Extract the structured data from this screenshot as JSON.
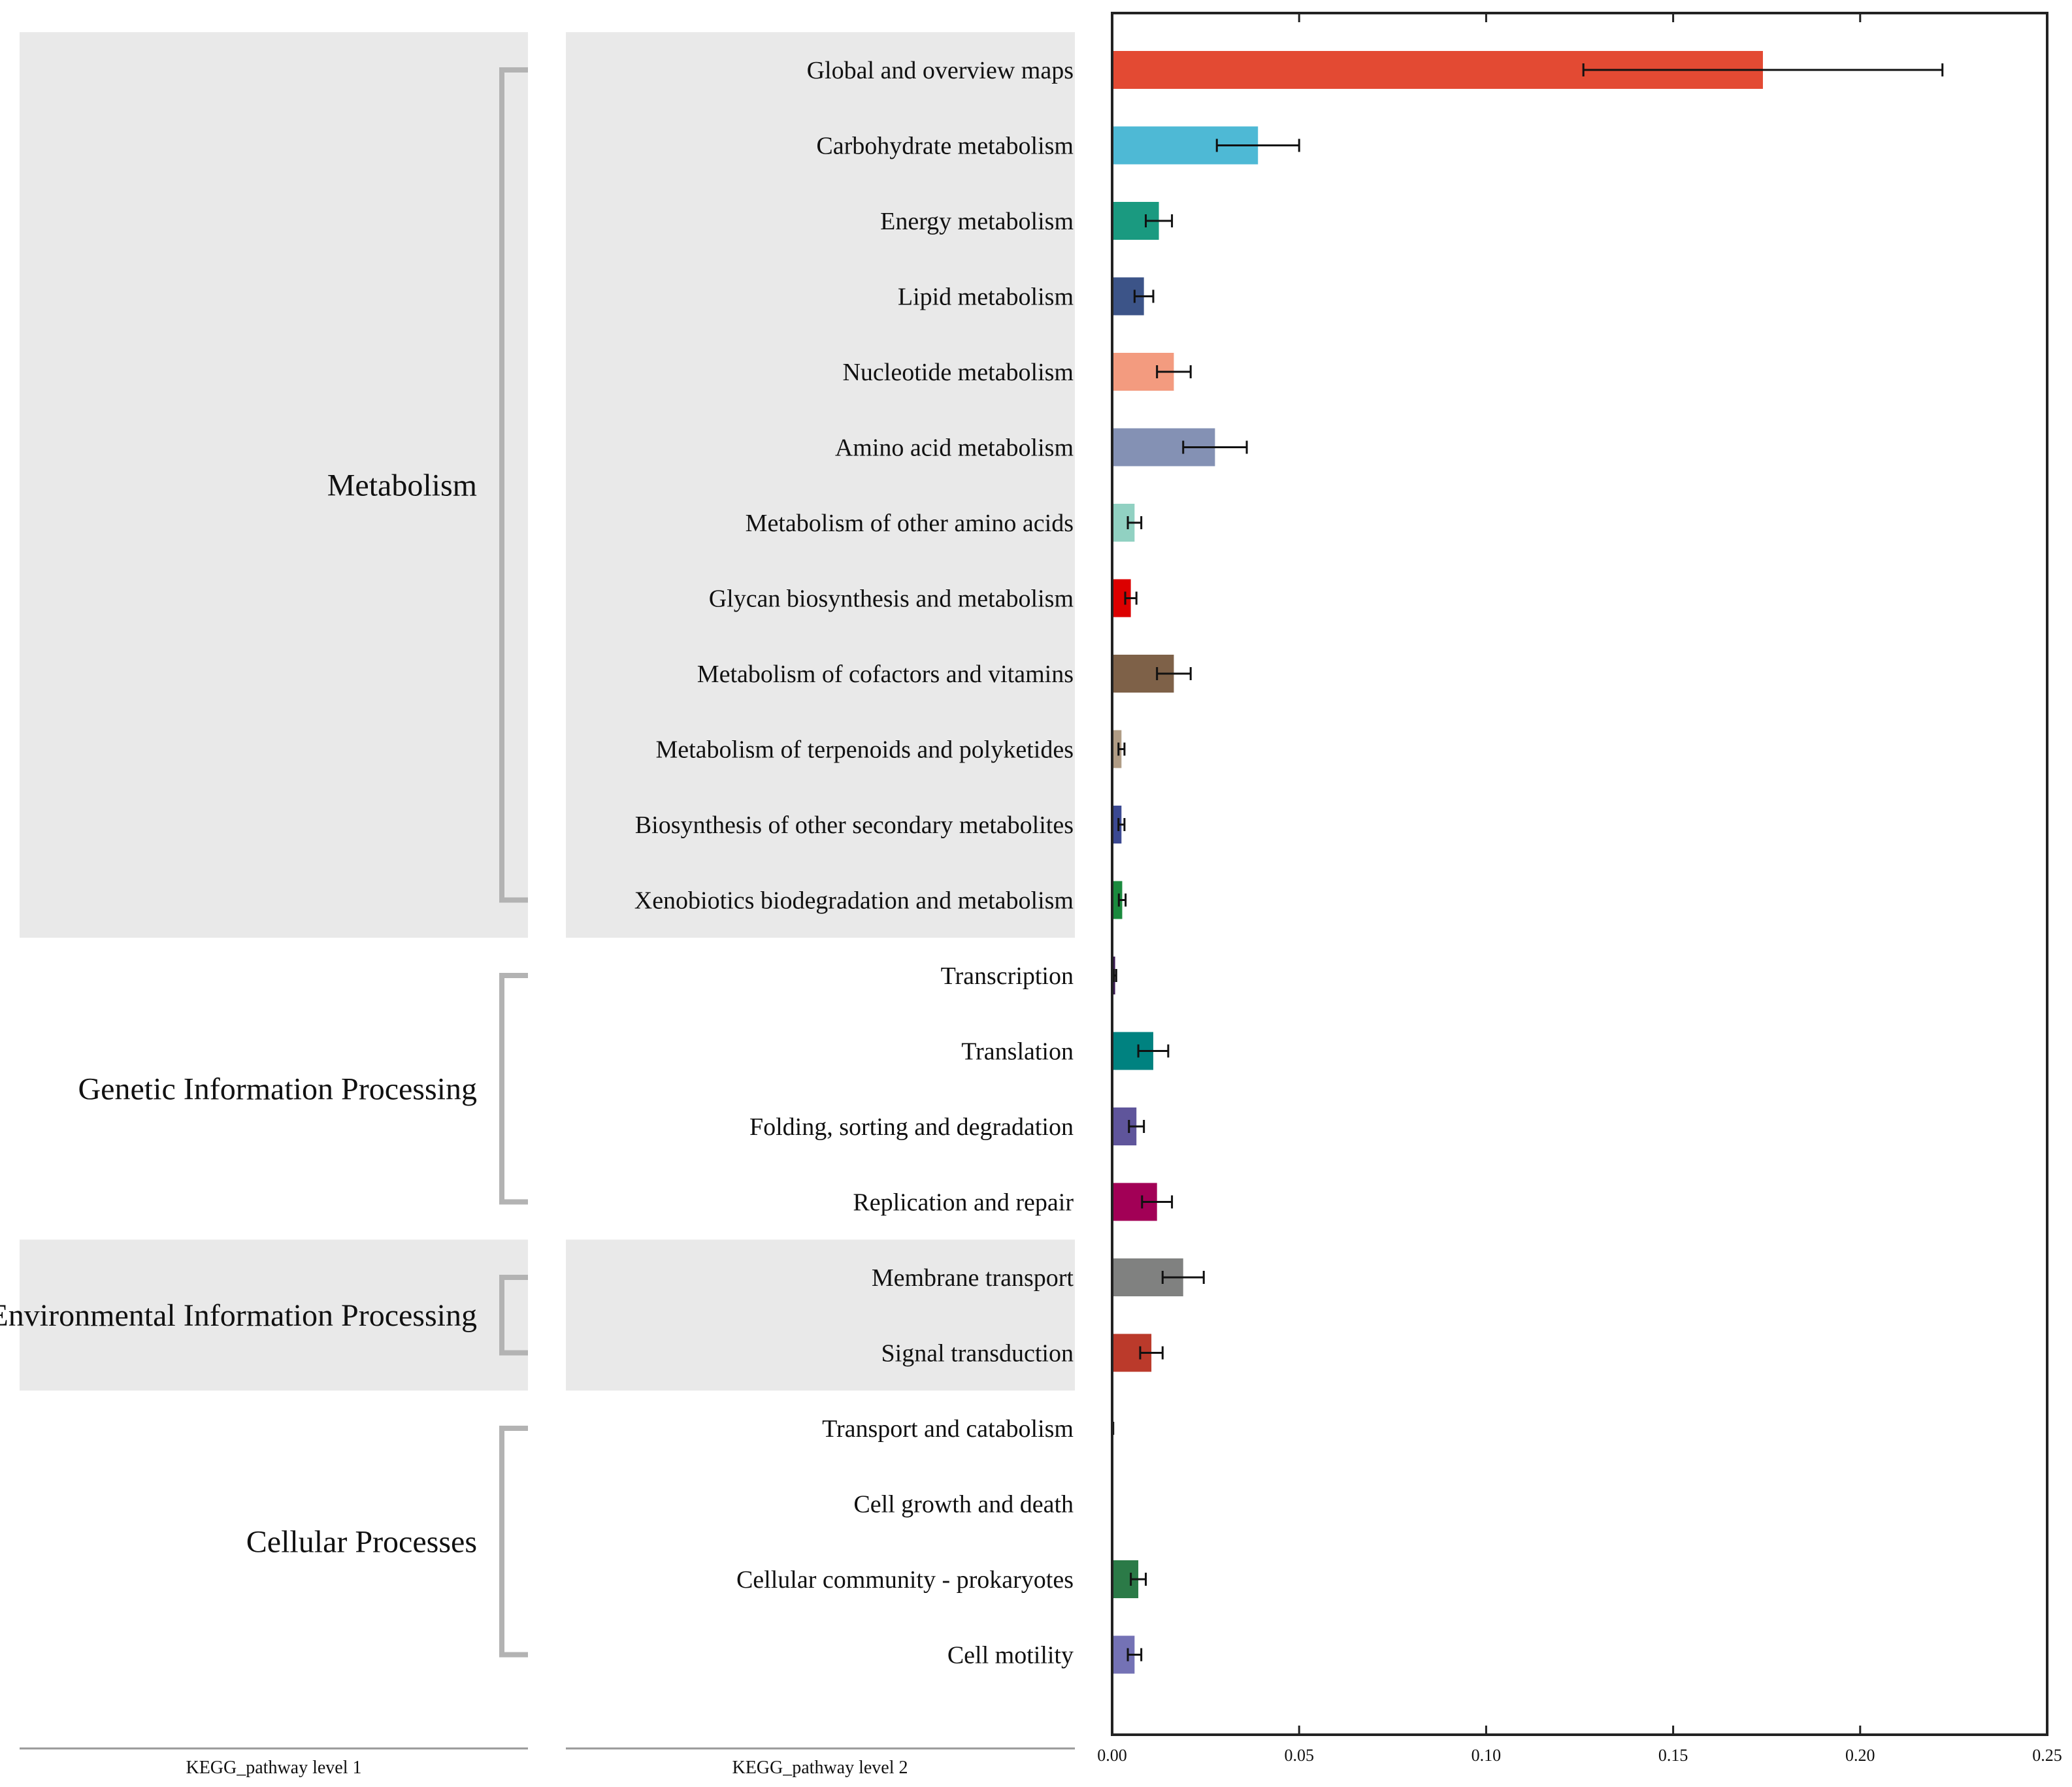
{
  "chart_data": {
    "type": "bar",
    "orientation": "horizontal",
    "xlabel": "",
    "xlim": [
      0,
      0.25
    ],
    "xticks": [
      0.0,
      0.05,
      0.1,
      0.15,
      0.2,
      0.25
    ],
    "xtick_labels": [
      "0.00",
      "0.05",
      "0.10",
      "0.15",
      "0.20",
      "0.25"
    ],
    "level1_title": "KEGG_pathway level 1",
    "level2_title": "KEGG_pathway level 2",
    "groups": [
      {
        "name": "Metabolism",
        "start": 0,
        "end": 11,
        "shaded": true
      },
      {
        "name": "Genetic Information Processing",
        "start": 12,
        "end": 15,
        "shaded": false
      },
      {
        "name": "Environmental Information Processing",
        "start": 16,
        "end": 17,
        "shaded": true
      },
      {
        "name": "Cellular Processes",
        "start": 18,
        "end": 21,
        "shaded": false
      }
    ],
    "bars": [
      {
        "category": "Global and overview maps",
        "value": 0.174,
        "error": 0.048,
        "color": "#e34a33"
      },
      {
        "category": "Carbohydrate metabolism",
        "value": 0.039,
        "error": 0.011,
        "color": "#4eb9d5"
      },
      {
        "category": "Energy metabolism",
        "value": 0.0125,
        "error": 0.0035,
        "color": "#1a9a80"
      },
      {
        "category": "Lipid metabolism",
        "value": 0.0085,
        "error": 0.0025,
        "color": "#3c5488"
      },
      {
        "category": "Nucleotide metabolism",
        "value": 0.0165,
        "error": 0.0045,
        "color": "#f39b7f"
      },
      {
        "category": "Amino acid metabolism",
        "value": 0.0275,
        "error": 0.0085,
        "color": "#8491b4"
      },
      {
        "category": "Metabolism of other amino acids",
        "value": 0.006,
        "error": 0.0018,
        "color": "#91d1c2"
      },
      {
        "category": "Glycan biosynthesis and metabolism",
        "value": 0.005,
        "error": 0.0015,
        "color": "#dc0000"
      },
      {
        "category": "Metabolism of cofactors and vitamins",
        "value": 0.0165,
        "error": 0.0045,
        "color": "#7e6148"
      },
      {
        "category": "Metabolism of terpenoids and polyketides",
        "value": 0.0025,
        "error": 0.0008,
        "color": "#b09c85"
      },
      {
        "category": "Biosynthesis of other secondary metabolites",
        "value": 0.0025,
        "error": 0.0008,
        "color": "#3b4992"
      },
      {
        "category": "Xenobiotics biodegradation and metabolism",
        "value": 0.0027,
        "error": 0.0009,
        "color": "#1b8a3e"
      },
      {
        "category": "Transcription",
        "value": 0.0008,
        "error": 0.0003,
        "color": "#3b1b53"
      },
      {
        "category": "Translation",
        "value": 0.011,
        "error": 0.004,
        "color": "#008280"
      },
      {
        "category": "Folding, sorting and degradation",
        "value": 0.0065,
        "error": 0.002,
        "color": "#5f559b"
      },
      {
        "category": "Replication and repair",
        "value": 0.012,
        "error": 0.004,
        "color": "#a20056"
      },
      {
        "category": "Membrane transport",
        "value": 0.019,
        "error": 0.0055,
        "color": "#808180"
      },
      {
        "category": "Signal transduction",
        "value": 0.0105,
        "error": 0.003,
        "color": "#bb3a2b"
      },
      {
        "category": "Transport and catabolism",
        "value": 0.0002,
        "error": 0.0001,
        "color": "#1b1919"
      },
      {
        "category": "Cell growth and death",
        "value": 0.0,
        "error": 0.0,
        "color": "#631879"
      },
      {
        "category": "Cellular community - prokaryotes",
        "value": 0.007,
        "error": 0.002,
        "color": "#2b7a47"
      },
      {
        "category": "Cell motility",
        "value": 0.006,
        "error": 0.0018,
        "color": "#7472b5"
      }
    ]
  }
}
